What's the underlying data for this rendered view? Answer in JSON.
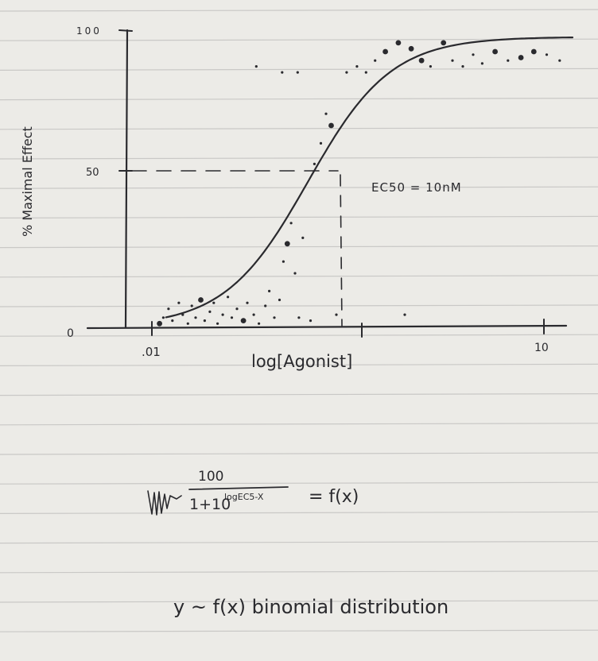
{
  "chart_data": {
    "type": "line",
    "ylabel": "% Maximal Effect",
    "xlabel": "log[Agonist]",
    "y_ticks": [
      "0",
      "50",
      "100"
    ],
    "x_ticks": [
      ".01",
      "10"
    ],
    "annotation": "EC50 = 10nM",
    "curve": {
      "kind": "sigmoid",
      "bottom": 0,
      "top": 98,
      "midpoint_log": -1,
      "hill_slope": 1.35,
      "xlim_log": [
        -2.4,
        1.05
      ]
    },
    "ec50_guide": {
      "y": 50,
      "x_log": -1
    },
    "scatter": [
      {
        "x": -2.15,
        "y": 1
      },
      {
        "x": -2.12,
        "y": 3
      },
      {
        "x": -2.08,
        "y": 6
      },
      {
        "x": -2.05,
        "y": 2
      },
      {
        "x": -2.0,
        "y": 8
      },
      {
        "x": -1.97,
        "y": 4
      },
      {
        "x": -1.93,
        "y": 1
      },
      {
        "x": -1.9,
        "y": 7
      },
      {
        "x": -1.87,
        "y": 3
      },
      {
        "x": -1.83,
        "y": 9
      },
      {
        "x": -1.8,
        "y": 2
      },
      {
        "x": -1.76,
        "y": 5
      },
      {
        "x": -1.73,
        "y": 8
      },
      {
        "x": -1.7,
        "y": 1
      },
      {
        "x": -1.66,
        "y": 4
      },
      {
        "x": -1.62,
        "y": 10
      },
      {
        "x": -1.59,
        "y": 3
      },
      {
        "x": -1.55,
        "y": 6
      },
      {
        "x": -1.5,
        "y": 2
      },
      {
        "x": -1.47,
        "y": 8
      },
      {
        "x": -1.42,
        "y": 4
      },
      {
        "x": -1.38,
        "y": 1
      },
      {
        "x": -1.33,
        "y": 7
      },
      {
        "x": -1.3,
        "y": 12
      },
      {
        "x": -1.26,
        "y": 3
      },
      {
        "x": -1.22,
        "y": 9
      },
      {
        "x": -1.19,
        "y": 22
      },
      {
        "x": -1.16,
        "y": 28
      },
      {
        "x": -1.13,
        "y": 35
      },
      {
        "x": -1.1,
        "y": 18
      },
      {
        "x": -1.07,
        "y": 3
      },
      {
        "x": -1.04,
        "y": 30
      },
      {
        "x": -0.98,
        "y": 2
      },
      {
        "x": -0.95,
        "y": 55
      },
      {
        "x": -0.9,
        "y": 62
      },
      {
        "x": -0.86,
        "y": 72
      },
      {
        "x": -0.82,
        "y": 68
      },
      {
        "x": -0.78,
        "y": 4
      },
      {
        "x": -0.7,
        "y": 86
      },
      {
        "x": -0.62,
        "y": 88
      },
      {
        "x": -0.55,
        "y": 86
      },
      {
        "x": -0.48,
        "y": 90
      },
      {
        "x": -0.4,
        "y": 93
      },
      {
        "x": -0.3,
        "y": 96
      },
      {
        "x": -0.2,
        "y": 94
      },
      {
        "x": -0.12,
        "y": 90
      },
      {
        "x": -0.05,
        "y": 88
      },
      {
        "x": 0.05,
        "y": 96
      },
      {
        "x": 0.12,
        "y": 90
      },
      {
        "x": 0.2,
        "y": 88
      },
      {
        "x": 0.28,
        "y": 92
      },
      {
        "x": 0.35,
        "y": 89
      },
      {
        "x": 0.45,
        "y": 93
      },
      {
        "x": 0.55,
        "y": 90
      },
      {
        "x": 0.65,
        "y": 91
      },
      {
        "x": 0.75,
        "y": 93
      },
      {
        "x": 0.85,
        "y": 92
      },
      {
        "x": 0.95,
        "y": 90
      },
      {
        "x": -0.25,
        "y": 4
      },
      {
        "x": -1.4,
        "y": 88
      },
      {
        "x": -1.2,
        "y": 86
      },
      {
        "x": -1.08,
        "y": 86
      }
    ]
  },
  "notes": {
    "formula_numerator": "100",
    "formula_denominator_base": "1+10",
    "formula_exponent": "logEC5-X",
    "formula_rhs": "= f(x)",
    "distribution_line": "y ~ f(x) binomial distribution"
  }
}
